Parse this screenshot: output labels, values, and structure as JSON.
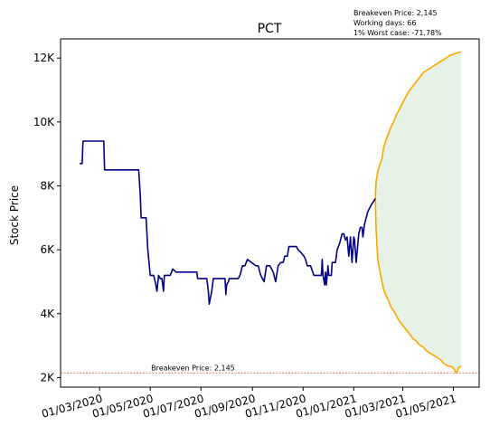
{
  "chart_data": {
    "type": "line",
    "title": "PCT",
    "ylabel": "Stock Price",
    "xlabel": "",
    "ylim": [
      1700,
      12600
    ],
    "xlim": [
      "2020-01-14",
      "2021-06-01"
    ],
    "y_ticks": [
      {
        "value": 2000,
        "label": "2K"
      },
      {
        "value": 4000,
        "label": "4K"
      },
      {
        "value": 6000,
        "label": "6K"
      },
      {
        "value": 8000,
        "label": "8K"
      },
      {
        "value": 10000,
        "label": "10K"
      },
      {
        "value": 12000,
        "label": "12K"
      }
    ],
    "x_ticks": [
      {
        "date": "2020-03-01",
        "label": "01/03/2020"
      },
      {
        "date": "2020-05-01",
        "label": "01/05/2020"
      },
      {
        "date": "2020-07-01",
        "label": "01/07/2020"
      },
      {
        "date": "2020-09-01",
        "label": "01/09/2020"
      },
      {
        "date": "2020-11-01",
        "label": "01/11/2020"
      },
      {
        "date": "2021-01-01",
        "label": "01/01/2021"
      },
      {
        "date": "2021-03-01",
        "label": "01/03/2021"
      },
      {
        "date": "2021-05-01",
        "label": "01/05/2021"
      }
    ],
    "annotations": [
      "Breakeven Price: 2,145",
      "Working days: 66",
      "1% Worst case: -71.78%"
    ],
    "breakeven": {
      "value": 2145,
      "label": "Breakeven Price: 2,145",
      "color": "#e8554b"
    },
    "series": [
      {
        "color": "#00008b",
        "points": [
          [
            "2020-02-06",
            8700
          ],
          [
            "2020-02-09",
            8700
          ],
          [
            "2020-02-10",
            9400
          ],
          [
            "2020-02-12",
            9400
          ],
          [
            "2020-02-20",
            9400
          ],
          [
            "2020-03-01",
            9400
          ],
          [
            "2020-03-06",
            9400
          ],
          [
            "2020-03-07",
            8500
          ],
          [
            "2020-03-20",
            8500
          ],
          [
            "2020-04-05",
            8500
          ],
          [
            "2020-04-17",
            8500
          ],
          [
            "2020-04-19",
            7700
          ],
          [
            "2020-04-20",
            7000
          ],
          [
            "2020-04-26",
            7000
          ],
          [
            "2020-04-28",
            6000
          ],
          [
            "2020-05-01",
            5200
          ],
          [
            "2020-05-05",
            5200
          ],
          [
            "2020-05-07",
            5000
          ],
          [
            "2020-05-09",
            4700
          ],
          [
            "2020-05-11",
            5200
          ],
          [
            "2020-05-13",
            5100
          ],
          [
            "2020-05-15",
            5100
          ],
          [
            "2020-05-17",
            4700
          ],
          [
            "2020-05-18",
            5200
          ],
          [
            "2020-05-25",
            5200
          ],
          [
            "2020-05-28",
            5400
          ],
          [
            "2020-06-01",
            5300
          ],
          [
            "2020-06-10",
            5300
          ],
          [
            "2020-06-20",
            5300
          ],
          [
            "2020-06-26",
            5300
          ],
          [
            "2020-06-27",
            5100
          ],
          [
            "2020-07-06",
            5100
          ],
          [
            "2020-07-08",
            5100
          ],
          [
            "2020-07-10",
            4700
          ],
          [
            "2020-07-11",
            4300
          ],
          [
            "2020-07-14",
            4700
          ],
          [
            "2020-07-16",
            5100
          ],
          [
            "2020-07-25",
            5100
          ],
          [
            "2020-07-30",
            5100
          ],
          [
            "2020-07-31",
            4600
          ],
          [
            "2020-08-01",
            4900
          ],
          [
            "2020-08-03",
            5000
          ],
          [
            "2020-08-04",
            5100
          ],
          [
            "2020-08-15",
            5100
          ],
          [
            "2020-08-17",
            5200
          ],
          [
            "2020-08-20",
            5500
          ],
          [
            "2020-08-23",
            5500
          ],
          [
            "2020-08-26",
            5700
          ],
          [
            "2020-08-31",
            5600
          ],
          [
            "2020-09-05",
            5500
          ],
          [
            "2020-09-08",
            5500
          ],
          [
            "2020-09-11",
            5200
          ],
          [
            "2020-09-15",
            5000
          ],
          [
            "2020-09-18",
            5500
          ],
          [
            "2020-09-22",
            5500
          ],
          [
            "2020-09-26",
            5300
          ],
          [
            "2020-09-29",
            5000
          ],
          [
            "2020-10-02",
            5500
          ],
          [
            "2020-10-05",
            5600
          ],
          [
            "2020-10-08",
            5600
          ],
          [
            "2020-10-10",
            5800
          ],
          [
            "2020-10-13",
            5800
          ],
          [
            "2020-10-15",
            6100
          ],
          [
            "2020-10-24",
            6100
          ],
          [
            "2020-10-26",
            6000
          ],
          [
            "2020-10-30",
            5900
          ],
          [
            "2020-11-02",
            5800
          ],
          [
            "2020-11-04",
            5700
          ],
          [
            "2020-11-06",
            5500
          ],
          [
            "2020-11-10",
            5500
          ],
          [
            "2020-11-14",
            5200
          ],
          [
            "2020-11-20",
            5200
          ],
          [
            "2020-11-23",
            5200
          ],
          [
            "2020-11-24",
            5700
          ],
          [
            "2020-11-25",
            5200
          ],
          [
            "2020-11-27",
            4900
          ],
          [
            "2020-11-28",
            5300
          ],
          [
            "2020-11-29",
            4900
          ],
          [
            "2020-12-01",
            5500
          ],
          [
            "2020-12-02",
            5200
          ],
          [
            "2020-12-05",
            5200
          ],
          [
            "2020-12-06",
            5600
          ],
          [
            "2020-12-10",
            5600
          ],
          [
            "2020-12-12",
            6000
          ],
          [
            "2020-12-15",
            6200
          ],
          [
            "2020-12-18",
            6500
          ],
          [
            "2020-12-20",
            6500
          ],
          [
            "2020-12-22",
            6300
          ],
          [
            "2020-12-24",
            6400
          ],
          [
            "2020-12-26",
            5800
          ],
          [
            "2020-12-28",
            6400
          ],
          [
            "2020-12-30",
            5600
          ],
          [
            "2021-01-01",
            6400
          ],
          [
            "2021-01-02",
            6300
          ],
          [
            "2021-01-04",
            5600
          ],
          [
            "2021-01-07",
            6500
          ],
          [
            "2021-01-09",
            6700
          ],
          [
            "2021-01-11",
            6700
          ],
          [
            "2021-01-12",
            6400
          ],
          [
            "2021-01-14",
            6800
          ],
          [
            "2021-01-18",
            7200
          ],
          [
            "2021-01-22",
            7400
          ],
          [
            "2021-01-27",
            7600
          ]
        ]
      }
    ],
    "forecast": {
      "color": "#ffa500",
      "fill_color": "#e5f2e5",
      "upper": [
        [
          "2021-01-27",
          7600
        ],
        [
          "2021-01-28",
          8150
        ],
        [
          "2021-01-30",
          8450
        ],
        [
          "2021-02-01",
          8650
        ],
        [
          "2021-02-04",
          8850
        ],
        [
          "2021-02-06",
          9200
        ],
        [
          "2021-02-09",
          9450
        ],
        [
          "2021-02-12",
          9650
        ],
        [
          "2021-02-15",
          9850
        ],
        [
          "2021-02-18",
          10000
        ],
        [
          "2021-02-21",
          10200
        ],
        [
          "2021-02-24",
          10350
        ],
        [
          "2021-02-27",
          10500
        ],
        [
          "2021-03-02",
          10650
        ],
        [
          "2021-03-05",
          10800
        ],
        [
          "2021-03-08",
          10950
        ],
        [
          "2021-03-11",
          11050
        ],
        [
          "2021-03-14",
          11150
        ],
        [
          "2021-03-17",
          11250
        ],
        [
          "2021-03-20",
          11350
        ],
        [
          "2021-03-23",
          11450
        ],
        [
          "2021-03-26",
          11550
        ],
        [
          "2021-03-29",
          11600
        ],
        [
          "2021-04-01",
          11650
        ],
        [
          "2021-04-04",
          11700
        ],
        [
          "2021-04-07",
          11750
        ],
        [
          "2021-04-10",
          11800
        ],
        [
          "2021-04-13",
          11850
        ],
        [
          "2021-04-16",
          11900
        ],
        [
          "2021-04-19",
          11950
        ],
        [
          "2021-04-22",
          12000
        ],
        [
          "2021-04-25",
          12050
        ],
        [
          "2021-04-28",
          12100
        ],
        [
          "2021-05-01",
          12120
        ],
        [
          "2021-05-04",
          12150
        ],
        [
          "2021-05-07",
          12170
        ],
        [
          "2021-05-10",
          12200
        ]
      ],
      "lower": [
        [
          "2021-01-27",
          7600
        ],
        [
          "2021-01-28",
          6600
        ],
        [
          "2021-01-30",
          5700
        ],
        [
          "2021-02-01",
          5400
        ],
        [
          "2021-02-04",
          5000
        ],
        [
          "2021-02-06",
          4750
        ],
        [
          "2021-02-09",
          4550
        ],
        [
          "2021-02-12",
          4400
        ],
        [
          "2021-02-15",
          4200
        ],
        [
          "2021-02-18",
          4100
        ],
        [
          "2021-02-21",
          3950
        ],
        [
          "2021-02-24",
          3800
        ],
        [
          "2021-02-27",
          3700
        ],
        [
          "2021-03-02",
          3600
        ],
        [
          "2021-03-05",
          3500
        ],
        [
          "2021-03-08",
          3400
        ],
        [
          "2021-03-11",
          3300
        ],
        [
          "2021-03-14",
          3200
        ],
        [
          "2021-03-17",
          3150
        ],
        [
          "2021-03-20",
          3050
        ],
        [
          "2021-03-23",
          3000
        ],
        [
          "2021-03-26",
          2950
        ],
        [
          "2021-03-29",
          2850
        ],
        [
          "2021-04-01",
          2800
        ],
        [
          "2021-04-04",
          2750
        ],
        [
          "2021-04-07",
          2700
        ],
        [
          "2021-04-10",
          2650
        ],
        [
          "2021-04-13",
          2600
        ],
        [
          "2021-04-16",
          2550
        ],
        [
          "2021-04-19",
          2450
        ],
        [
          "2021-04-22",
          2400
        ],
        [
          "2021-04-25",
          2350
        ],
        [
          "2021-04-28",
          2350
        ],
        [
          "2021-05-01",
          2300
        ],
        [
          "2021-05-04",
          2150
        ],
        [
          "2021-05-06",
          2200
        ],
        [
          "2021-05-07",
          2300
        ],
        [
          "2021-05-10",
          2350
        ]
      ]
    }
  }
}
